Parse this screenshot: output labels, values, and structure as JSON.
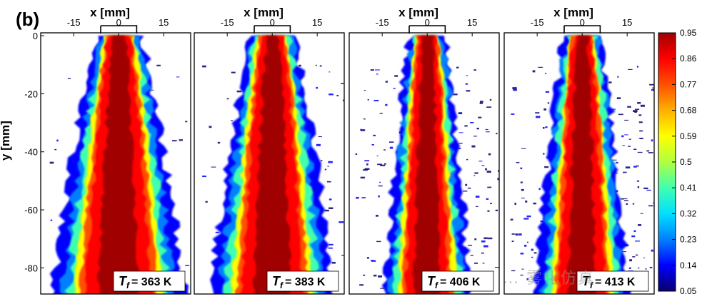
{
  "figure": {
    "panel_label": "(b)",
    "watermark": "… 雾化仿真"
  },
  "chart_data": {
    "type": "heatmap",
    "xlabel": "x [mm]",
    "ylabel": "y [mm]",
    "x_ticks": [
      -15,
      0,
      15
    ],
    "xlim": [
      -26,
      24
    ],
    "y_ticks": [
      0,
      -20,
      -40,
      -60,
      -80
    ],
    "ylim": [
      -89,
      1
    ],
    "colorbar": {
      "ticks": [
        0.95,
        0.86,
        0.77,
        0.68,
        0.59,
        0.5,
        0.41,
        0.32,
        0.23,
        0.14,
        0.05
      ],
      "range": [
        0.05,
        0.95
      ],
      "colors": [
        "#08006e",
        "#0000ff",
        "#0080ff",
        "#00e0ff",
        "#40ffb0",
        "#b0ff40",
        "#ffff00",
        "#ffb000",
        "#ff5000",
        "#ff0000",
        "#a00000"
      ]
    },
    "panels": [
      {
        "label_prefix": "T",
        "label_sub": "f",
        "label_value": "= 363 K",
        "spread": 1.0,
        "scatter": 0.2
      },
      {
        "label_prefix": "T",
        "label_sub": "f",
        "label_value": "= 383 K",
        "spread": 0.92,
        "scatter": 0.4
      },
      {
        "label_prefix": "T",
        "label_sub": "f",
        "label_value": "= 406 K",
        "spread": 0.6,
        "scatter": 0.9
      },
      {
        "label_prefix": "T",
        "label_sub": "f",
        "label_value": "= 413 K",
        "spread": 0.65,
        "scatter": 1.0
      }
    ]
  }
}
